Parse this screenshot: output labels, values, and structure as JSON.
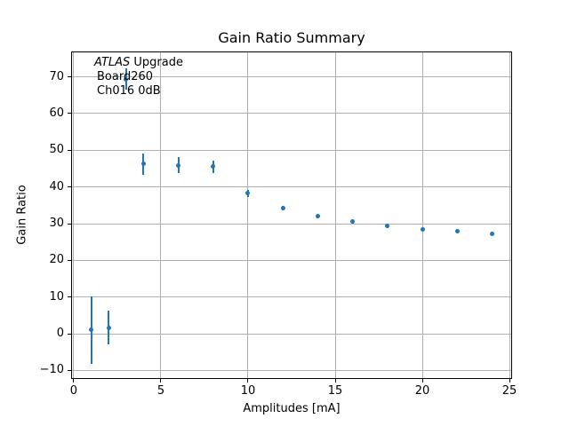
{
  "chart_data": {
    "type": "scatter",
    "title": "Gain Ratio Summary",
    "xlabel": "Amplitudes [mA]",
    "ylabel": "Gain Ratio",
    "annotation": {
      "line1_italic": "ATLAS",
      "line1_rest": " Upgrade",
      "line2": "Board260",
      "line3": "Ch016 0dB"
    },
    "x": [
      1,
      2,
      3,
      4,
      6,
      8,
      10,
      12,
      14,
      16,
      18,
      20,
      22,
      24
    ],
    "y": [
      1.0,
      1.7,
      69.4,
      46.2,
      45.9,
      45.5,
      38.3,
      34.2,
      32.0,
      30.5,
      29.3,
      28.5,
      27.9,
      27.3
    ],
    "yerr": [
      9.2,
      4.6,
      3.0,
      3.0,
      2.2,
      1.7,
      1.0,
      0.6,
      0.5,
      0.4,
      0.4,
      0.3,
      0.3,
      0.3
    ],
    "xlim": [
      -0.15,
      25.15
    ],
    "ylim": [
      -12.3,
      76.9
    ],
    "xticks": [
      0,
      5,
      10,
      15,
      20,
      25
    ],
    "yticks": [
      -10,
      0,
      10,
      20,
      30,
      40,
      50,
      60,
      70
    ],
    "xtick_labels": [
      "0",
      "5",
      "10",
      "15",
      "20",
      "25"
    ],
    "ytick_labels": [
      "−10",
      "0",
      "10",
      "20",
      "30",
      "40",
      "50",
      "60",
      "70"
    ],
    "grid": true,
    "legend_position": "none",
    "marker_color": "#1f77b4",
    "grid_color": "#b0b0b0",
    "spine_color": "#000000",
    "background_color": "#ffffff"
  }
}
